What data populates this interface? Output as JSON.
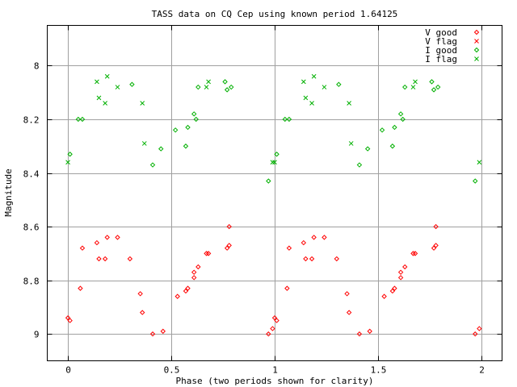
{
  "chart_data": {
    "type": "scatter",
    "title": "TASS data on CQ Cep  using known period 1.64125",
    "xlabel": "Phase (two periods shown for clarity)",
    "ylabel": "Magnitude",
    "xlim": [
      -0.1,
      2.1
    ],
    "ylim": [
      9.1,
      7.85
    ],
    "y_inverted": true,
    "grid": true,
    "legend_position": "top-right",
    "x_ticks": [
      {
        "value": 0,
        "label": "0"
      },
      {
        "value": 0.5,
        "label": "0.5"
      },
      {
        "value": 1,
        "label": "1"
      },
      {
        "value": 1.5,
        "label": "1.5"
      },
      {
        "value": 2,
        "label": "2"
      }
    ],
    "y_ticks": [
      {
        "value": 8,
        "label": "8"
      },
      {
        "value": 8.2,
        "label": "8.2"
      },
      {
        "value": 8.4,
        "label": "8.4"
      },
      {
        "value": 8.6,
        "label": "8.6"
      },
      {
        "value": 8.8,
        "label": "8.8"
      },
      {
        "value": 9,
        "label": "9"
      }
    ],
    "series": [
      {
        "name": "V good",
        "color": "#ff0000",
        "marker": "diamond",
        "points": [
          [
            0.0,
            8.94
          ],
          [
            0.01,
            8.95
          ],
          [
            0.06,
            8.83
          ],
          [
            0.07,
            8.68
          ],
          [
            0.14,
            8.66
          ],
          [
            0.15,
            8.72
          ],
          [
            0.18,
            8.72
          ],
          [
            0.19,
            8.64
          ],
          [
            0.24,
            8.64
          ],
          [
            0.3,
            8.72
          ],
          [
            0.35,
            8.85
          ],
          [
            0.36,
            8.92
          ],
          [
            0.41,
            9.0
          ],
          [
            0.46,
            8.99
          ],
          [
            0.53,
            8.86
          ],
          [
            0.57,
            8.84
          ],
          [
            0.58,
            8.83
          ],
          [
            0.61,
            8.77
          ],
          [
            0.61,
            8.79
          ],
          [
            0.63,
            8.75
          ],
          [
            0.67,
            8.7
          ],
          [
            0.68,
            8.7
          ],
          [
            0.77,
            8.68
          ],
          [
            0.78,
            8.67
          ],
          [
            0.78,
            8.6
          ],
          [
            0.97,
            9.0
          ],
          [
            0.99,
            8.98
          ],
          [
            1.0,
            8.94
          ],
          [
            1.01,
            8.95
          ],
          [
            1.06,
            8.83
          ],
          [
            1.07,
            8.68
          ],
          [
            1.14,
            8.66
          ],
          [
            1.15,
            8.72
          ],
          [
            1.18,
            8.72
          ],
          [
            1.19,
            8.64
          ],
          [
            1.24,
            8.64
          ],
          [
            1.3,
            8.72
          ],
          [
            1.35,
            8.85
          ],
          [
            1.36,
            8.92
          ],
          [
            1.41,
            9.0
          ],
          [
            1.46,
            8.99
          ],
          [
            1.53,
            8.86
          ],
          [
            1.57,
            8.84
          ],
          [
            1.58,
            8.83
          ],
          [
            1.61,
            8.77
          ],
          [
            1.61,
            8.79
          ],
          [
            1.63,
            8.75
          ],
          [
            1.67,
            8.7
          ],
          [
            1.68,
            8.7
          ],
          [
            1.77,
            8.68
          ],
          [
            1.78,
            8.67
          ],
          [
            1.78,
            8.6
          ],
          [
            1.97,
            9.0
          ],
          [
            1.99,
            8.98
          ]
        ]
      },
      {
        "name": "V flag",
        "color": "#ff0000",
        "marker": "cross",
        "points": []
      },
      {
        "name": "I good",
        "color": "#00b000",
        "marker": "diamond",
        "points": [
          [
            0.01,
            8.33
          ],
          [
            0.05,
            8.2
          ],
          [
            0.07,
            8.2
          ],
          [
            0.31,
            8.07
          ],
          [
            0.41,
            8.37
          ],
          [
            0.45,
            8.31
          ],
          [
            0.52,
            8.24
          ],
          [
            0.57,
            8.3
          ],
          [
            0.58,
            8.23
          ],
          [
            0.61,
            8.18
          ],
          [
            0.62,
            8.2
          ],
          [
            0.63,
            8.08
          ],
          [
            0.76,
            8.06
          ],
          [
            0.77,
            8.09
          ],
          [
            0.79,
            8.08
          ],
          [
            0.97,
            8.43
          ],
          [
            1.01,
            8.33
          ],
          [
            1.05,
            8.2
          ],
          [
            1.07,
            8.2
          ],
          [
            1.31,
            8.07
          ],
          [
            1.41,
            8.37
          ],
          [
            1.45,
            8.31
          ],
          [
            1.52,
            8.24
          ],
          [
            1.57,
            8.3
          ],
          [
            1.58,
            8.23
          ],
          [
            1.61,
            8.18
          ],
          [
            1.62,
            8.2
          ],
          [
            1.63,
            8.08
          ],
          [
            1.76,
            8.06
          ],
          [
            1.77,
            8.09
          ],
          [
            1.79,
            8.08
          ],
          [
            1.97,
            8.43
          ]
        ]
      },
      {
        "name": "I flag",
        "color": "#00b000",
        "marker": "cross",
        "points": [
          [
            0.0,
            8.36
          ],
          [
            0.14,
            8.06
          ],
          [
            0.15,
            8.12
          ],
          [
            0.18,
            8.14
          ],
          [
            0.19,
            8.04
          ],
          [
            0.24,
            8.08
          ],
          [
            0.36,
            8.14
          ],
          [
            0.37,
            8.29
          ],
          [
            0.67,
            8.08
          ],
          [
            0.68,
            8.06
          ],
          [
            0.99,
            8.36
          ],
          [
            1.0,
            8.36
          ],
          [
            1.14,
            8.06
          ],
          [
            1.15,
            8.12
          ],
          [
            1.18,
            8.14
          ],
          [
            1.19,
            8.04
          ],
          [
            1.24,
            8.08
          ],
          [
            1.36,
            8.14
          ],
          [
            1.37,
            8.29
          ],
          [
            1.67,
            8.08
          ],
          [
            1.68,
            8.06
          ],
          [
            1.99,
            8.36
          ]
        ]
      }
    ]
  }
}
